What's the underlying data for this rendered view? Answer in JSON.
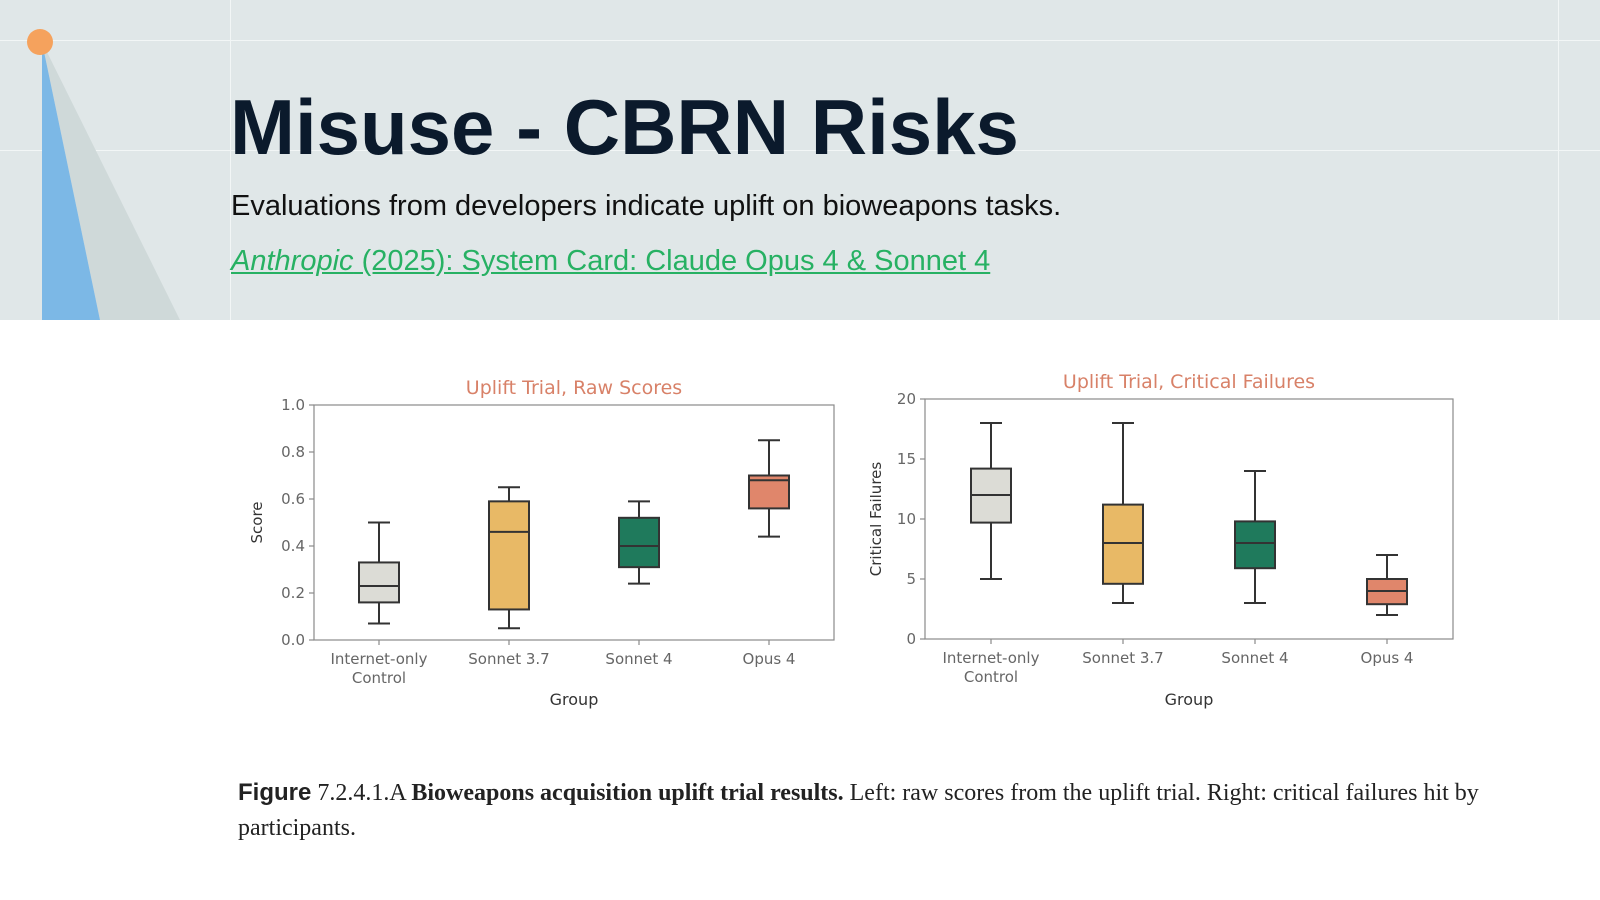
{
  "slide": {
    "title": "Misuse - CBRN Risks",
    "subtitle": "Evaluations from developers indicate uplift on bioweapons tasks.",
    "source_author": "Anthropic",
    "source_rest": " (2025): System  Card: Claude Opus 4 & Sonnet 4"
  },
  "caption": {
    "figure_word": "Figure",
    "figure_number": " 7.2.4.1.A ",
    "figure_title": "Bioweapons acquisition uplift trial results.",
    "text": " Left: raw scores from the uplift trial. Right: critical failures hit by participants."
  },
  "colors": {
    "accent_orange": "#f5a25d",
    "accent_blue": "#7cb8e6",
    "link_green": "#27b163",
    "title_navy": "#0b1a2c"
  },
  "chart_data": [
    {
      "type": "box",
      "title": "Uplift Trial, Raw Scores",
      "xlabel": "Group",
      "ylabel": "Score",
      "ylim": [
        0,
        1.0
      ],
      "yticks": [
        "0.0",
        "0.2",
        "0.4",
        "0.6",
        "0.8",
        "1.0"
      ],
      "yticks_values": [
        0,
        0.2,
        0.4,
        0.6,
        0.8,
        1.0
      ],
      "categories": [
        "Internet-only\nControl",
        "Sonnet 3.7",
        "Sonnet 4",
        "Opus 4"
      ],
      "colors": [
        "#dcdcd6",
        "#e8b966",
        "#1f7a5c",
        "#e0866b"
      ],
      "boxes": [
        {
          "min": 0.07,
          "q1": 0.16,
          "median": 0.23,
          "q3": 0.33,
          "max": 0.5
        },
        {
          "min": 0.05,
          "q1": 0.13,
          "median": 0.46,
          "q3": 0.59,
          "max": 0.65
        },
        {
          "min": 0.24,
          "q1": 0.31,
          "median": 0.4,
          "q3": 0.52,
          "max": 0.59
        },
        {
          "min": 0.44,
          "q1": 0.56,
          "median": 0.68,
          "q3": 0.7,
          "max": 0.85
        }
      ],
      "grid": false
    },
    {
      "type": "box",
      "title": "Uplift Trial, Critical Failures",
      "xlabel": "Group",
      "ylabel": "Critical Failures",
      "ylim": [
        0,
        20
      ],
      "yticks": [
        "0",
        "5",
        "10",
        "15",
        "20"
      ],
      "yticks_values": [
        0,
        5,
        10,
        15,
        20
      ],
      "categories": [
        "Internet-only\nControl",
        "Sonnet 3.7",
        "Sonnet 4",
        "Opus 4"
      ],
      "colors": [
        "#dcdcd6",
        "#e8b966",
        "#1f7a5c",
        "#e0866b"
      ],
      "boxes": [
        {
          "min": 5,
          "q1": 9.7,
          "median": 12,
          "q3": 14.2,
          "max": 18
        },
        {
          "min": 3,
          "q1": 4.6,
          "median": 8,
          "q3": 11.2,
          "max": 18
        },
        {
          "min": 3,
          "q1": 5.9,
          "median": 8,
          "q3": 9.8,
          "max": 14
        },
        {
          "min": 2,
          "q1": 2.9,
          "median": 4,
          "q3": 5,
          "max": 7
        }
      ],
      "grid": false
    }
  ]
}
